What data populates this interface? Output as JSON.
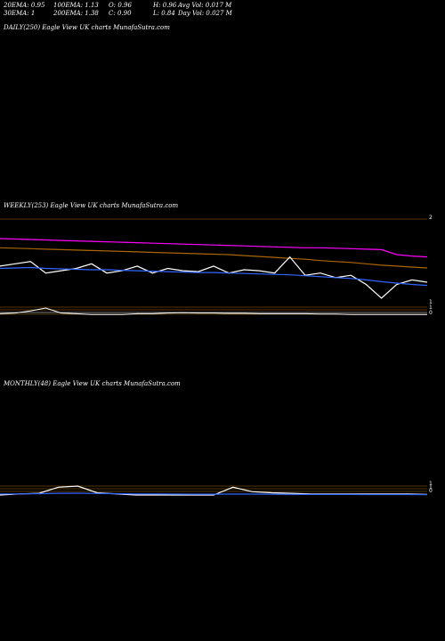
{
  "stats": {
    "ema20": "20EMA: 0.95",
    "ema100": "100EMA: 1.13",
    "open": "O: 0.96",
    "high": "H: 0.96",
    "avgvol": "Avg Vol: 0.017 M",
    "ema30": "30EMA: 1",
    "ema200": "200EMA: 1.38",
    "close": "C: 0.90",
    "low": "L: 0.84",
    "dayvol": "Day Vol: 0.027 M"
  },
  "panels": {
    "daily": "DAILY(250) Eagle   View  UK charts MunafaSutra.com",
    "weekly": "WEEKLY(253) Eagle   View  UK charts MunafaSutra.com",
    "monthly": "MONTHLY(48) Eagle   View  UK charts MunafaSutra.com"
  },
  "chart_data": [
    {
      "type": "line",
      "name": "daily",
      "series": []
    },
    {
      "type": "line",
      "name": "weekly",
      "y_ticks": [
        "2",
        "1",
        "1",
        "0"
      ],
      "series": [
        {
          "color": "#ff00ff",
          "values": [
            2.3,
            2.29,
            2.28,
            2.27,
            2.26,
            2.25,
            2.24,
            2.23,
            2.22,
            2.21,
            2.2,
            2.19,
            2.18,
            2.17,
            2.16,
            2.15,
            2.14,
            2.13,
            2.12,
            2.11,
            2.1,
            2.1,
            2.09,
            2.08,
            2.07,
            2.06,
            1.95,
            1.92,
            1.9
          ]
        },
        {
          "color": "#aa6600",
          "values": [
            2.1,
            2.09,
            2.08,
            2.07,
            2.06,
            2.05,
            2.04,
            2.03,
            2.02,
            2.01,
            2.0,
            1.99,
            1.98,
            1.97,
            1.96,
            1.95,
            1.93,
            1.91,
            1.89,
            1.87,
            1.85,
            1.82,
            1.8,
            1.78,
            1.75,
            1.72,
            1.7,
            1.68,
            1.66
          ]
        },
        {
          "color": "#ffffff",
          "values": [
            1.7,
            1.75,
            1.8,
            1.55,
            1.6,
            1.65,
            1.75,
            1.55,
            1.6,
            1.7,
            1.55,
            1.65,
            1.6,
            1.58,
            1.7,
            1.55,
            1.62,
            1.6,
            1.55,
            1.9,
            1.5,
            1.55,
            1.45,
            1.5,
            1.3,
            1.0,
            1.3,
            1.4,
            1.35
          ]
        },
        {
          "color": "#3366ff",
          "values": [
            1.65,
            1.66,
            1.67,
            1.65,
            1.64,
            1.63,
            1.62,
            1.62,
            1.61,
            1.6,
            1.59,
            1.58,
            1.57,
            1.56,
            1.56,
            1.55,
            1.54,
            1.53,
            1.52,
            1.51,
            1.49,
            1.47,
            1.45,
            1.43,
            1.4,
            1.36,
            1.33,
            1.3,
            1.28
          ]
        }
      ],
      "volume": [
        0.2,
        0.3,
        0.6,
        1.0,
        0.3,
        0.2,
        0.1,
        0.1,
        0.1,
        0.2,
        0.2,
        0.3,
        0.35,
        0.3,
        0.3,
        0.25,
        0.25,
        0.2,
        0.2,
        0.2,
        0.2,
        0.15,
        0.15,
        0.1,
        0.1,
        0.1,
        0.1,
        0.1,
        0.1
      ]
    },
    {
      "type": "line",
      "name": "monthly",
      "y_ticks": [
        "1",
        "1",
        "0"
      ],
      "series": [
        {
          "color": "#ffffff",
          "values": [
            0.2,
            0.3,
            0.35,
            0.9,
            1.0,
            0.4,
            0.3,
            0.2,
            0.2,
            0.2,
            0.2,
            0.2,
            0.9,
            0.5,
            0.4,
            0.35,
            0.3,
            0.3,
            0.3,
            0.3,
            0.3,
            0.3,
            0.25
          ]
        },
        {
          "color": "#3366ff",
          "values": [
            0.3,
            0.3,
            0.32,
            0.35,
            0.36,
            0.34,
            0.32,
            0.3,
            0.29,
            0.28,
            0.27,
            0.27,
            0.28,
            0.28,
            0.27,
            0.26,
            0.25,
            0.25,
            0.25,
            0.24,
            0.24,
            0.24,
            0.23
          ]
        }
      ]
    }
  ]
}
